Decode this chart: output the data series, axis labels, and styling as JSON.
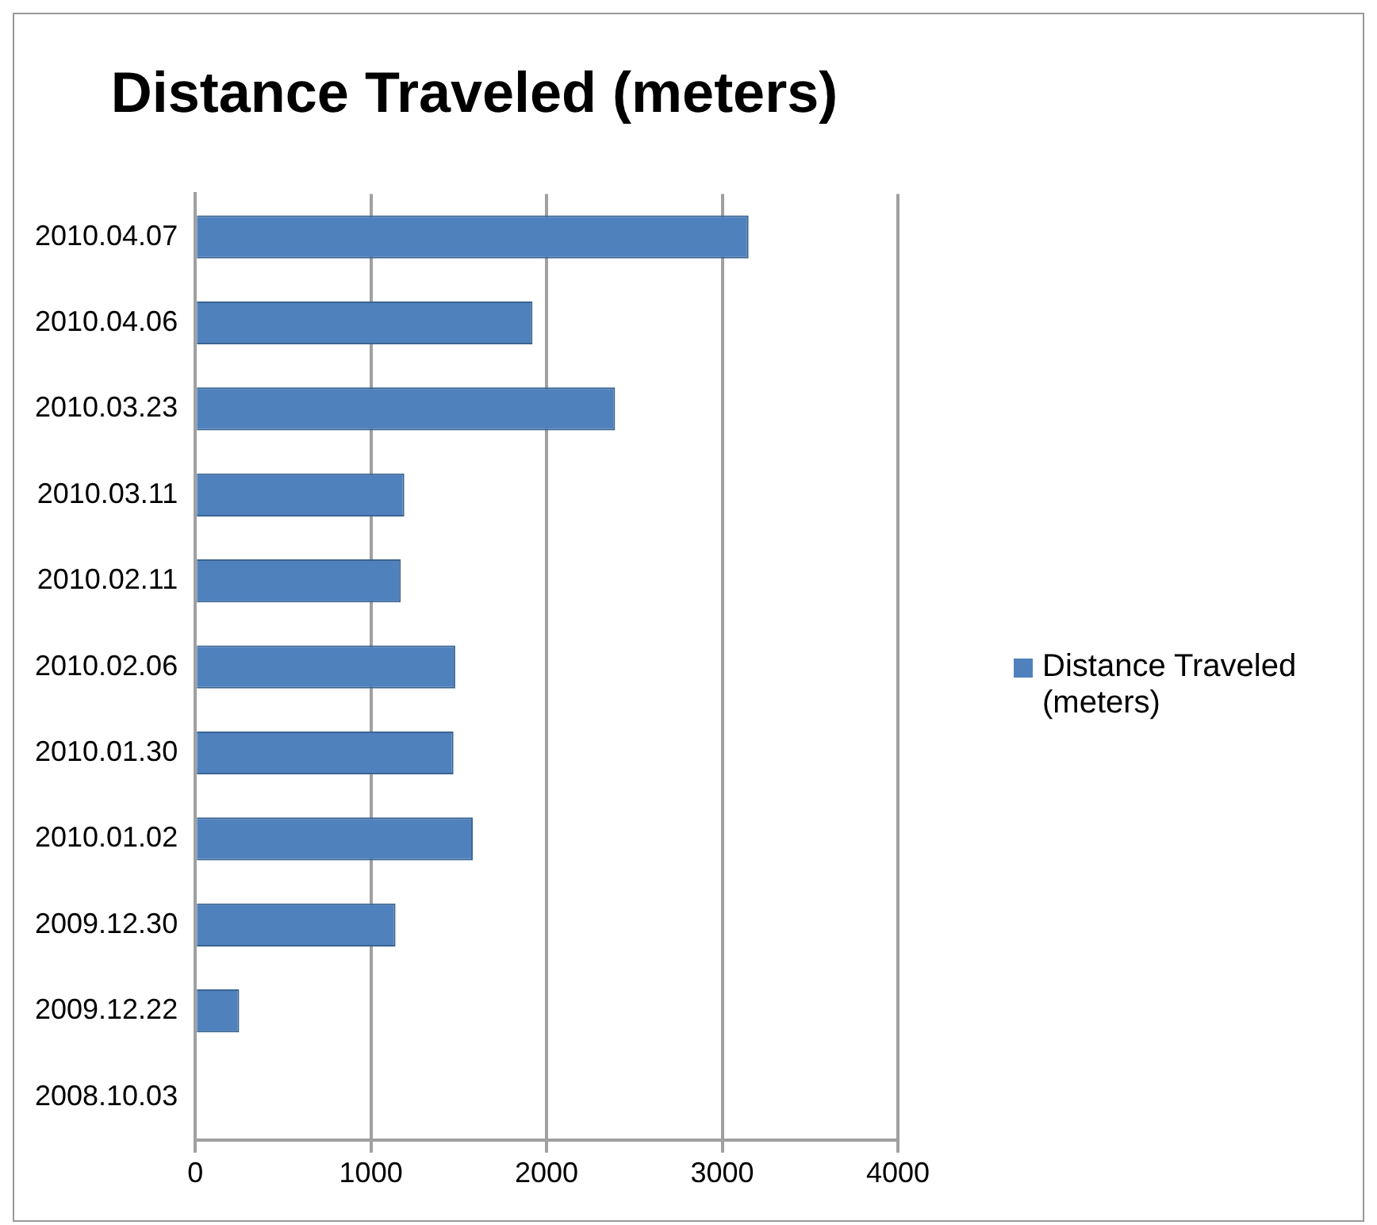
{
  "chart_data": {
    "type": "bar",
    "orientation": "horizontal",
    "title": "Distance Traveled (meters)",
    "categories": [
      "2010.04.07",
      "2010.04.06",
      "2010.03.23",
      "2010.03.11",
      "2010.02.11",
      "2010.02.06",
      "2010.01.30",
      "2010.01.02",
      "2009.12.30",
      "2009.12.22",
      "2008.10.03"
    ],
    "series": [
      {
        "name": "Distance Traveled (meters)",
        "color": "#4f81bd",
        "values": [
          3150,
          1920,
          2390,
          1190,
          1170,
          1480,
          1470,
          1580,
          1140,
          250,
          0
        ]
      }
    ],
    "xlim": [
      0,
      4000
    ],
    "xticks": [
      0,
      1000,
      2000,
      3000,
      4000
    ],
    "grid": "x",
    "legend": "right"
  }
}
